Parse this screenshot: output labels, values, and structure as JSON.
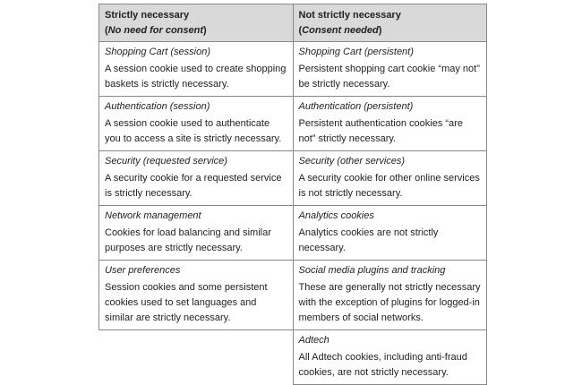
{
  "header": {
    "col1_title": "Strictly necessary",
    "col1_sub": "No need for consent",
    "col2_title": "Not strictly necessary",
    "col2_sub": "Consent needed"
  },
  "rows": [
    {
      "left": {
        "title": "Shopping Cart (session)",
        "text": "A session cookie used to create shopping baskets is strictly necessary."
      },
      "right": {
        "title": "Shopping Cart (persistent)",
        "text": "Persistent shopping cart cookie “may not” be strictly necessary."
      }
    },
    {
      "left": {
        "title": "Authentication (session)",
        "text": "A session cookie used to authenticate you to access a site is strictly necessary."
      },
      "right": {
        "title": "Authentication (persistent)",
        "text": "Persistent authentication cookies “are not” strictly necessary."
      }
    },
    {
      "left": {
        "title": "Security (requested service)",
        "text": "A security cookie for a requested service is strictly necessary."
      },
      "right": {
        "title": "Security (other services)",
        "text": "A security cookie for other online services is not strictly necessary."
      }
    },
    {
      "left": {
        "title": "Network management",
        "text": "Cookies for load balancing and similar purposes are strictly necessary."
      },
      "right": {
        "title": "Analytics cookies",
        "text": "Analytics cookies are not strictly necessary."
      }
    },
    {
      "left": {
        "title": "User preferences",
        "text": "Session cookies and some persistent cookies used to set languages and similar are strictly necessary."
      },
      "right": {
        "title": "Social media plugins and tracking",
        "text": "These are generally not strictly necessary with the exception of plugins for logged-in members of social networks."
      }
    },
    {
      "left": null,
      "right": {
        "title": "Adtech",
        "text": "All Adtech cookies, including anti-fraud cookies, are not strictly necessary."
      }
    }
  ]
}
